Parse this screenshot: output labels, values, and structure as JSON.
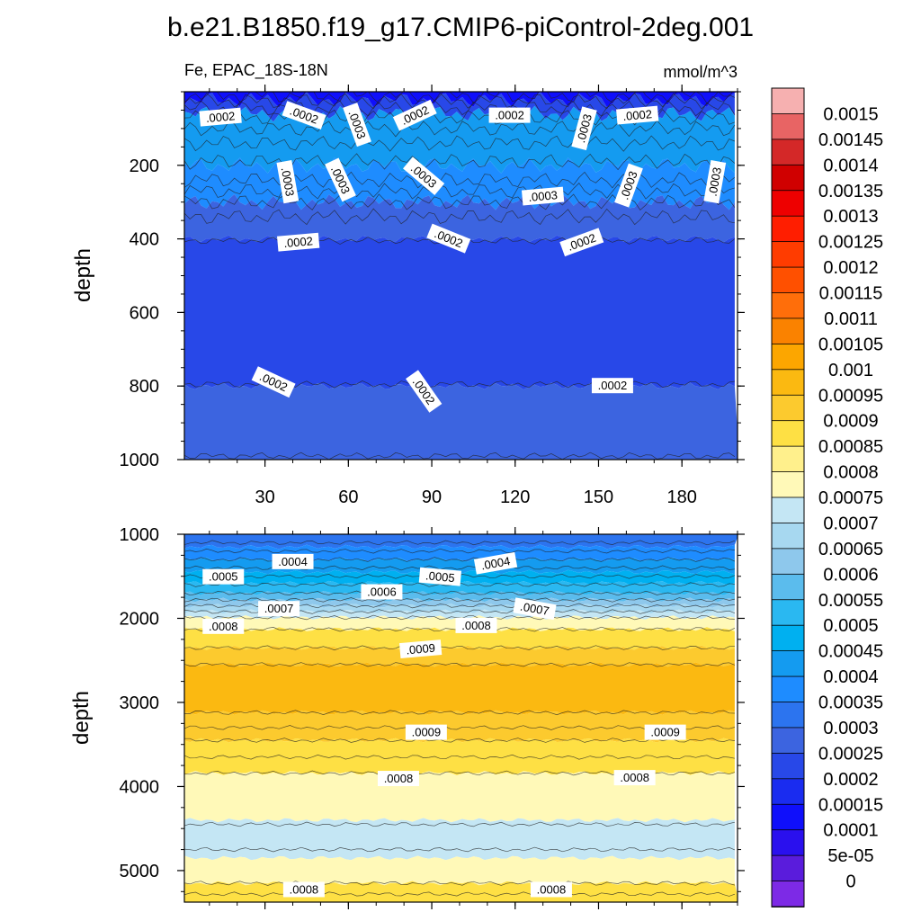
{
  "chart_data": {
    "type": "contour",
    "title": "b.e21.B1850.f19_g17.CMIP6-piControl-2deg.001",
    "variable_label": "Fe, EPAC_18S-18N",
    "units": "mmol/m^3",
    "colorbar": {
      "levels": [
        "0.0015",
        "0.00145",
        "0.0014",
        "0.00135",
        "0.0013",
        "0.00125",
        "0.0012",
        "0.00115",
        "0.0011",
        "0.00105",
        "0.001",
        "0.00095",
        "0.0009",
        "0.00085",
        "0.0008",
        "0.00075",
        "0.0007",
        "0.00065",
        "0.0006",
        "0.00055",
        "0.0005",
        "0.00045",
        "0.0004",
        "0.00035",
        "0.0003",
        "0.00025",
        "0.0002",
        "0.00015",
        "0.0001",
        "5e-05",
        "0"
      ],
      "colors_top_to_bottom": [
        "#f6b0b0",
        "#e86464",
        "#d42828",
        "#d00000",
        "#ee0000",
        "#ff1e00",
        "#ff3c00",
        "#ff5000",
        "#ff6e0a",
        "#fa8200",
        "#fca600",
        "#fbb911",
        "#fcca2e",
        "#fee044",
        "#fff08c",
        "#fff9b8",
        "#c4e6f4",
        "#a7d8f0",
        "#8ec8ec",
        "#5bbced",
        "#2ab8f1",
        "#00b0f0",
        "#149bf0",
        "#1e8cff",
        "#2c74ef",
        "#3c64e0",
        "#2848e8",
        "#1a2cf0",
        "#0f0ffb",
        "#2a10ee",
        "#5a1cdc",
        "#7d2ae6"
      ]
    },
    "panels": [
      {
        "name": "upper",
        "ylabel": "depth",
        "xlim": [
          1,
          200
        ],
        "ylim": [
          0,
          1000
        ],
        "xticks": [
          "30",
          "60",
          "90",
          "120",
          "150",
          "180"
        ],
        "xtick_values": [
          30,
          60,
          90,
          120,
          150,
          180
        ],
        "yticks": [
          "200",
          "400",
          "600",
          "800",
          "1000"
        ],
        "ytick_values": [
          200,
          400,
          600,
          800,
          1000
        ],
        "bands": [
          {
            "top": 0,
            "bottom": 22,
            "color": "#0f0ffb"
          },
          {
            "top": 22,
            "bottom": 60,
            "color": "#2848e8"
          },
          {
            "top": 60,
            "bottom": 200,
            "color": "#149bf0"
          },
          {
            "top": 200,
            "bottom": 300,
            "color": "#1e8cff"
          },
          {
            "top": 300,
            "bottom": 400,
            "color": "#3c64e0"
          },
          {
            "top": 400,
            "bottom": 800,
            "color": "#2848e8"
          },
          {
            "top": 800,
            "bottom": 1000,
            "color": "#3c64e0"
          }
        ],
        "contour_depths": [
          10,
          25,
          45,
          70,
          100,
          140,
          190,
          240,
          270,
          300,
          340,
          405,
          795,
          990
        ],
        "contour_labels": [
          {
            "text": ".0002",
            "x": 14,
            "depth": 70,
            "angle": -5
          },
          {
            "text": ".0002",
            "x": 44,
            "depth": 65,
            "angle": 20
          },
          {
            "text": ".0003",
            "x": 63,
            "depth": 90,
            "angle": 70
          },
          {
            "text": ".0002",
            "x": 84,
            "depth": 65,
            "angle": -25
          },
          {
            "text": ".0002",
            "x": 118,
            "depth": 65,
            "angle": 0
          },
          {
            "text": ".0003",
            "x": 145,
            "depth": 100,
            "angle": -75
          },
          {
            "text": ".0002",
            "x": 164,
            "depth": 65,
            "angle": -5
          },
          {
            "text": ".0003",
            "x": 38,
            "depth": 245,
            "angle": 80
          },
          {
            "text": ".0003",
            "x": 57,
            "depth": 240,
            "angle": 65
          },
          {
            "text": ".0003",
            "x": 87,
            "depth": 230,
            "angle": 40
          },
          {
            "text": ".0003",
            "x": 130,
            "depth": 285,
            "angle": -5
          },
          {
            "text": ".0003",
            "x": 161,
            "depth": 255,
            "angle": -70
          },
          {
            "text": ".0003",
            "x": 192,
            "depth": 245,
            "angle": -80
          },
          {
            "text": ".0002",
            "x": 42,
            "depth": 410,
            "angle": -5
          },
          {
            "text": ".0002",
            "x": 96,
            "depth": 400,
            "angle": 22
          },
          {
            "text": ".0002",
            "x": 144,
            "depth": 410,
            "angle": -20
          },
          {
            "text": ".0002",
            "x": 33,
            "depth": 790,
            "angle": 25
          },
          {
            "text": ".0002",
            "x": 87,
            "depth": 815,
            "angle": 55
          },
          {
            "text": ".0002",
            "x": 155,
            "depth": 800,
            "angle": 0
          }
        ]
      },
      {
        "name": "lower",
        "ylabel": "depth",
        "xlim": [
          1,
          200
        ],
        "ylim": [
          1000,
          5375
        ],
        "yticks": [
          "1000",
          "2000",
          "3000",
          "4000",
          "5000"
        ],
        "ytick_values": [
          1000,
          2000,
          3000,
          4000,
          5000
        ],
        "bands": [
          {
            "top": 1000,
            "bottom": 1150,
            "color": "#2c74ef"
          },
          {
            "top": 1150,
            "bottom": 1300,
            "color": "#1e8cff"
          },
          {
            "top": 1300,
            "bottom": 1450,
            "color": "#149bf0"
          },
          {
            "top": 1450,
            "bottom": 1580,
            "color": "#00b0f0"
          },
          {
            "top": 1580,
            "bottom": 1700,
            "color": "#2ab8f1"
          },
          {
            "top": 1700,
            "bottom": 1780,
            "color": "#5bbced"
          },
          {
            "top": 1780,
            "bottom": 1850,
            "color": "#8ec8ec"
          },
          {
            "top": 1850,
            "bottom": 1920,
            "color": "#a7d8f0"
          },
          {
            "top": 1920,
            "bottom": 1990,
            "color": "#c4e6f4"
          },
          {
            "top": 1990,
            "bottom": 2130,
            "color": "#fff9b8"
          },
          {
            "top": 2130,
            "bottom": 2350,
            "color": "#fee044"
          },
          {
            "top": 2350,
            "bottom": 2550,
            "color": "#fcca2e"
          },
          {
            "top": 2550,
            "bottom": 3120,
            "color": "#fbb911"
          },
          {
            "top": 3120,
            "bottom": 3450,
            "color": "#fcca2e"
          },
          {
            "top": 3450,
            "bottom": 3840,
            "color": "#fee044"
          },
          {
            "top": 3840,
            "bottom": 4400,
            "color": "#fff9b8"
          },
          {
            "top": 4400,
            "bottom": 4850,
            "color": "#c4e6f4"
          },
          {
            "top": 4850,
            "bottom": 5150,
            "color": "#fff9b8"
          },
          {
            "top": 5150,
            "bottom": 5375,
            "color": "#fee044"
          }
        ],
        "contour_depths": [
          1100,
          1200,
          1300,
          1400,
          1500,
          1600,
          1700,
          1780,
          1850,
          1920,
          1990,
          2130,
          2350,
          2550,
          3120,
          3300,
          3450,
          3650,
          3840,
          4450,
          4750,
          5150,
          5280
        ],
        "contour_labels": [
          {
            "text": ".0004",
            "x": 40,
            "depth": 1330,
            "angle": 0
          },
          {
            "text": ".0004",
            "x": 113,
            "depth": 1350,
            "angle": -10
          },
          {
            "text": ".0005",
            "x": 15,
            "depth": 1510,
            "angle": 0
          },
          {
            "text": ".0005",
            "x": 93,
            "depth": 1510,
            "angle": 5
          },
          {
            "text": ".0006",
            "x": 72,
            "depth": 1690,
            "angle": 0
          },
          {
            "text": ".0007",
            "x": 35,
            "depth": 1890,
            "angle": 0
          },
          {
            "text": ".0007",
            "x": 127,
            "depth": 1890,
            "angle": 10
          },
          {
            "text": ".0008",
            "x": 15,
            "depth": 2100,
            "angle": 0
          },
          {
            "text": ".0008",
            "x": 106,
            "depth": 2090,
            "angle": 0
          },
          {
            "text": ".0009",
            "x": 86,
            "depth": 2370,
            "angle": -5
          },
          {
            "text": ".0009",
            "x": 88,
            "depth": 3360,
            "angle": 0
          },
          {
            "text": ".0009",
            "x": 174,
            "depth": 3360,
            "angle": 0
          },
          {
            "text": ".0008",
            "x": 78,
            "depth": 3910,
            "angle": 0
          },
          {
            "text": ".0008",
            "x": 163,
            "depth": 3900,
            "angle": 0
          },
          {
            "text": ".0008",
            "x": 44,
            "depth": 5230,
            "angle": 0
          },
          {
            "text": ".0008",
            "x": 133,
            "depth": 5230,
            "angle": 0
          }
        ]
      }
    ]
  }
}
